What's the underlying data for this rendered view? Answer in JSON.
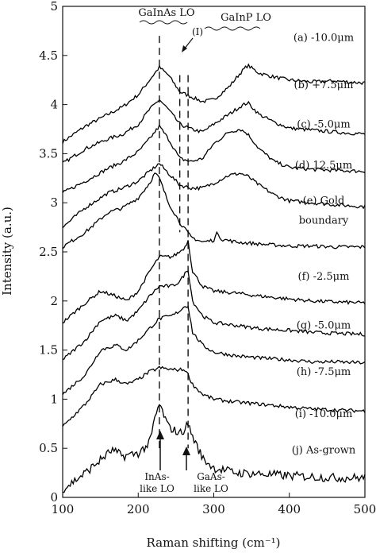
{
  "chart_data": {
    "type": "line",
    "xlabel": "Raman shifting (cm⁻¹)",
    "ylabel": "Intensity (a.u.)",
    "xlim": [
      100,
      500
    ],
    "ylim": [
      0,
      5
    ],
    "xticks": [
      "100",
      "200",
      "300",
      "400",
      "500"
    ],
    "yticks": [
      "0",
      "0.5",
      "1",
      "1.5",
      "2",
      "2.5",
      "3",
      "3.5",
      "4",
      "4.5",
      "5"
    ],
    "grid": false,
    "line_color": "#000000",
    "reference_lines": [
      {
        "x": 228,
        "style": "dashed"
      },
      {
        "x": 255,
        "style": "dashed"
      },
      {
        "x": 266,
        "style": "dashed"
      }
    ],
    "annotations": {
      "top_left": "GaInAs LO",
      "top_mid": "(I)",
      "top_right": "GaInP LO",
      "bottom_left_1": "InAs-",
      "bottom_left_2": "like LO",
      "bottom_right_1": "GaAs-",
      "bottom_right_2": "like LO"
    },
    "series": [
      {
        "label": "(a) -10.0μm",
        "label_y": 4.68,
        "x": [
          100,
          130,
          160,
          180,
          200,
          215,
          228,
          240,
          255,
          270,
          285,
          300,
          320,
          335,
          345,
          360,
          380,
          400,
          430,
          460,
          500
        ],
        "y": [
          3.62,
          3.78,
          3.9,
          3.98,
          4.1,
          4.25,
          4.38,
          4.3,
          4.13,
          4.08,
          4.03,
          4.05,
          4.18,
          4.32,
          4.4,
          4.32,
          4.28,
          4.25,
          4.23,
          4.24,
          4.22
        ]
      },
      {
        "label": "(b) +7.5μm",
        "label_y": 4.2,
        "x": [
          100,
          130,
          160,
          180,
          200,
          215,
          228,
          240,
          255,
          270,
          285,
          300,
          320,
          335,
          345,
          360,
          380,
          400,
          430,
          460,
          500
        ],
        "y": [
          3.4,
          3.55,
          3.65,
          3.7,
          3.8,
          3.95,
          4.05,
          3.95,
          3.8,
          3.75,
          3.72,
          3.8,
          3.9,
          3.98,
          4.02,
          3.9,
          3.82,
          3.76,
          3.74,
          3.72,
          3.7
        ]
      },
      {
        "label": "(c) -5.0μm",
        "label_y": 3.8,
        "x": [
          100,
          130,
          160,
          180,
          200,
          215,
          228,
          240,
          255,
          270,
          285,
          300,
          320,
          335,
          345,
          360,
          380,
          400,
          430,
          460,
          500
        ],
        "y": [
          3.1,
          3.22,
          3.35,
          3.42,
          3.52,
          3.65,
          3.78,
          3.65,
          3.45,
          3.42,
          3.45,
          3.6,
          3.72,
          3.75,
          3.7,
          3.55,
          3.42,
          3.36,
          3.34,
          3.33,
          3.32
        ]
      },
      {
        "label": "(d) 12.5μm",
        "label_y": 3.38,
        "x": [
          100,
          130,
          160,
          180,
          200,
          215,
          228,
          240,
          255,
          270,
          285,
          300,
          320,
          335,
          345,
          360,
          380,
          400,
          430,
          460,
          500
        ],
        "y": [
          2.75,
          2.95,
          3.1,
          3.15,
          3.22,
          3.32,
          3.4,
          3.3,
          3.18,
          3.15,
          3.15,
          3.2,
          3.28,
          3.3,
          3.27,
          3.18,
          3.08,
          3.02,
          3.0,
          2.98,
          2.96
        ]
      },
      {
        "label": "(e) Gold",
        "label_y": 3.02,
        "x": [
          100,
          130,
          160,
          180,
          200,
          215,
          222,
          228,
          240,
          255,
          270,
          285,
          300,
          305,
          310,
          330,
          360,
          400,
          430,
          460,
          500
        ],
        "y": [
          2.55,
          2.7,
          2.9,
          2.95,
          3.05,
          3.2,
          3.3,
          3.25,
          3.0,
          2.8,
          2.65,
          2.6,
          2.62,
          2.7,
          2.63,
          2.6,
          2.58,
          2.56,
          2.56,
          2.55,
          2.55
        ]
      },
      {
        "label": "boundary",
        "label_y": 2.82,
        "x": [],
        "y": []
      },
      {
        "label": "(f) -2.5μm",
        "label_y": 2.25,
        "x": [
          100,
          130,
          150,
          170,
          185,
          200,
          215,
          228,
          245,
          255,
          262,
          266,
          272,
          285,
          300,
          330,
          360,
          400,
          430,
          460,
          500
        ],
        "y": [
          1.78,
          1.98,
          2.1,
          2.05,
          2.0,
          2.1,
          2.3,
          2.45,
          2.45,
          2.5,
          2.55,
          2.62,
          2.3,
          2.15,
          2.1,
          2.08,
          2.05,
          2.02,
          2.0,
          1.99,
          1.98
        ]
      },
      {
        "label": "(g) -5.0μm",
        "label_y": 1.75,
        "x": [
          100,
          130,
          150,
          170,
          185,
          200,
          215,
          228,
          245,
          255,
          262,
          266,
          272,
          285,
          300,
          330,
          360,
          400,
          430,
          460,
          500
        ],
        "y": [
          1.4,
          1.6,
          1.8,
          1.85,
          1.8,
          1.9,
          2.05,
          2.15,
          2.15,
          2.2,
          2.28,
          2.32,
          2.0,
          1.85,
          1.78,
          1.75,
          1.72,
          1.7,
          1.68,
          1.67,
          1.66
        ]
      },
      {
        "label": "(h) -7.5μm",
        "label_y": 1.28,
        "x": [
          100,
          130,
          150,
          170,
          185,
          200,
          215,
          228,
          245,
          255,
          262,
          266,
          272,
          285,
          300,
          330,
          360,
          400,
          430,
          460,
          500
        ],
        "y": [
          1.05,
          1.25,
          1.5,
          1.55,
          1.5,
          1.6,
          1.72,
          1.82,
          1.85,
          1.9,
          1.95,
          1.95,
          1.68,
          1.55,
          1.48,
          1.44,
          1.42,
          1.4,
          1.38,
          1.38,
          1.37
        ]
      },
      {
        "label": "(i) -10.0μm",
        "label_y": 0.85,
        "x": [
          100,
          130,
          150,
          170,
          185,
          200,
          215,
          228,
          245,
          255,
          262,
          266,
          272,
          285,
          300,
          330,
          360,
          400,
          430,
          460,
          500
        ],
        "y": [
          0.72,
          0.95,
          1.15,
          1.2,
          1.15,
          1.2,
          1.28,
          1.32,
          1.3,
          1.3,
          1.3,
          1.25,
          1.15,
          1.05,
          1.0,
          0.97,
          0.95,
          0.92,
          0.9,
          0.89,
          0.88
        ]
      },
      {
        "label": "(j) As-grown",
        "label_y": 0.48,
        "x": [
          100,
          130,
          150,
          165,
          180,
          200,
          215,
          222,
          228,
          240,
          255,
          262,
          266,
          272,
          285,
          300,
          330,
          360,
          400,
          460,
          500
        ],
        "y": [
          0.08,
          0.25,
          0.38,
          0.48,
          0.42,
          0.45,
          0.55,
          0.8,
          0.95,
          0.72,
          0.65,
          0.7,
          0.75,
          0.62,
          0.4,
          0.3,
          0.25,
          0.24,
          0.22,
          0.2,
          0.2
        ]
      }
    ]
  }
}
